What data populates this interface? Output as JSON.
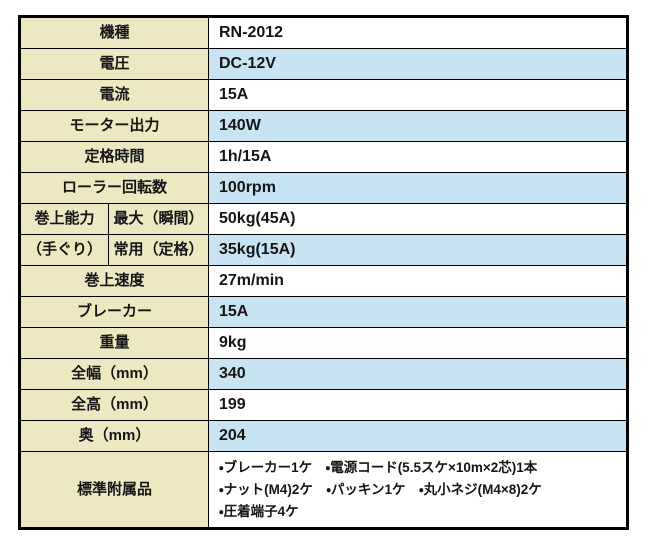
{
  "page": {
    "background": "#ffffff"
  },
  "table": {
    "colors": {
      "label_bg": "#EDE8C2",
      "value_bg": "#ffffff",
      "value_alt_bg": "#C8E4F2",
      "border": "#000000",
      "text": "#151515"
    },
    "rows": [
      {
        "label": "機種",
        "value": "RN-2012",
        "alt": false
      },
      {
        "label": "電圧",
        "value": "DC-12V",
        "alt": true
      },
      {
        "label": "電流",
        "value": "15A",
        "alt": false
      },
      {
        "label": "モーター出力",
        "value": "140W",
        "alt": true
      },
      {
        "label": "定格時間",
        "value": "1h/15A",
        "alt": false
      },
      {
        "label": "ローラー回転数",
        "value": "100rpm",
        "alt": true
      },
      {
        "label": "巻上能力",
        "sublabel": "最大（瞬間）",
        "value": "50kg(45A)",
        "alt": false,
        "split": true
      },
      {
        "label": "（手ぐり）",
        "sublabel": "常用（定格）",
        "value": "35kg(15A)",
        "alt": true,
        "split": true
      },
      {
        "label": "巻上速度",
        "value": "27m/min",
        "alt": false
      },
      {
        "label": "ブレーカー",
        "value": "15A",
        "alt": true
      },
      {
        "label": "重量",
        "value": "9kg",
        "alt": false
      },
      {
        "label": "全幅（mm）",
        "value": "340",
        "alt": true
      },
      {
        "label": "全高（mm）",
        "value": "199",
        "alt": false
      },
      {
        "label": "奥（mm）",
        "value": "204",
        "alt": true
      },
      {
        "label": "標準附属品",
        "value_lines": [
          "・ブレーカー1ケ　・電源コード(5.5スケ×10m×2芯)1本",
          "・ナット(M4)2ケ　・パッキン1ケ　・丸小ネジ(M4×8)2ケ",
          "・圧着端子4ケ"
        ],
        "alt": false,
        "tall": true
      }
    ]
  }
}
